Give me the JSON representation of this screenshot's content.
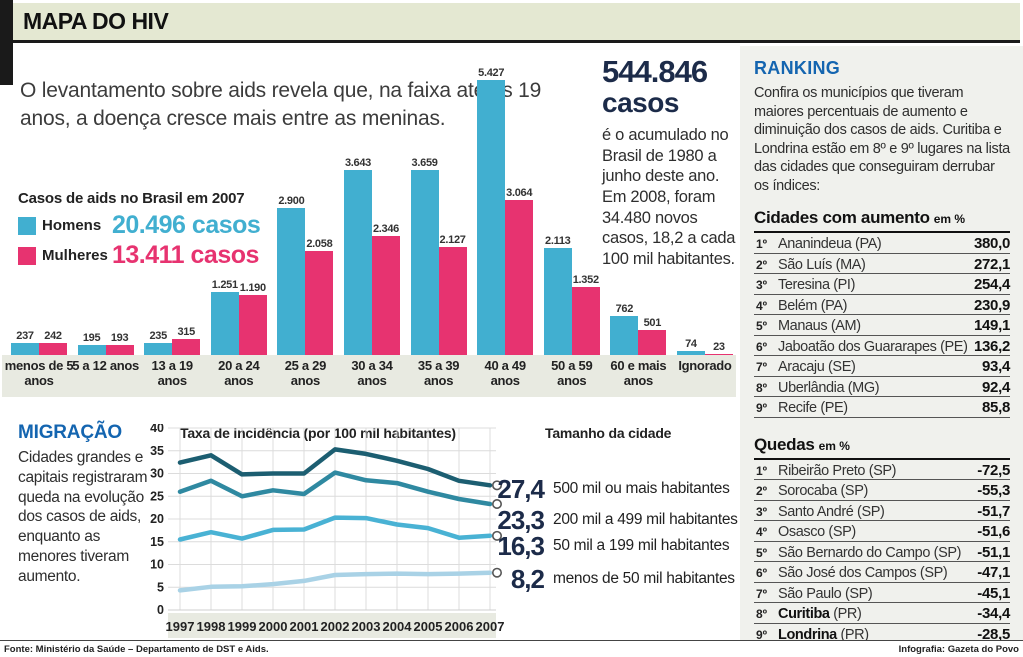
{
  "header": {
    "title": "MAPA DO HIV"
  },
  "intro": "O levantamento sobre aids revela que, na faixa até os 19 anos, a doença cresce mais entre as meninas.",
  "big_stat": {
    "number": "544.846",
    "unit": "casos",
    "description": "é o acumulado no Brasil de 1980 a junho deste ano. Em 2008, foram 34.480 novos casos, 18,2 a cada 100 mil habitantes."
  },
  "bar_chart": {
    "title": "Casos de aids no Brasil em 2007",
    "legend": [
      {
        "label": "Homens",
        "total": "20.496 casos",
        "color": "#41afd0"
      },
      {
        "label": "Mulheres",
        "total": "13.411 casos",
        "color": "#e73370"
      }
    ]
  },
  "migration": {
    "title": "MIGRAÇÃO",
    "text": "Cidades grandes e capitais registraram queda na evolução dos casos de aids, enquanto as menores tiveram aumento."
  },
  "ranking": {
    "title": "RANKING",
    "intro": "Confira os municípios que tiveram maiores percentuais de aumento e diminuição dos casos de aids. Curitiba e Londrina estão em 8º e 9º lugares na lista das cidades que conseguiram derrubar os índices:",
    "increase": {
      "title": "Cidades com aumento",
      "unit": "em %",
      "rows": [
        {
          "rank": "1º",
          "city": "Ananindeua",
          "uf": "(PA)",
          "value": "380,0",
          "highlight": false
        },
        {
          "rank": "2º",
          "city": "São Luís",
          "uf": "(MA)",
          "value": "272,1",
          "highlight": false
        },
        {
          "rank": "3º",
          "city": "Teresina",
          "uf": "(PI)",
          "value": "254,4",
          "highlight": false
        },
        {
          "rank": "4º",
          "city": "Belém",
          "uf": "(PA)",
          "value": "230,9",
          "highlight": false
        },
        {
          "rank": "5º",
          "city": "Manaus",
          "uf": "(AM)",
          "value": "149,1",
          "highlight": false
        },
        {
          "rank": "6º",
          "city": "Jaboatão dos Guararapes",
          "uf": "(PE)",
          "value": "136,2",
          "highlight": false
        },
        {
          "rank": "7º",
          "city": "Aracaju",
          "uf": "(SE)",
          "value": "93,4",
          "highlight": false
        },
        {
          "rank": "8º",
          "city": "Uberlândia",
          "uf": "(MG)",
          "value": "92,4",
          "highlight": false
        },
        {
          "rank": "9º",
          "city": "Recife",
          "uf": "(PE)",
          "value": "85,8",
          "highlight": false
        }
      ]
    },
    "decrease": {
      "title": "Quedas",
      "unit": "em %",
      "rows": [
        {
          "rank": "1º",
          "city": "Ribeirão Preto",
          "uf": "(SP)",
          "value": "-72,5",
          "highlight": false
        },
        {
          "rank": "2º",
          "city": "Sorocaba",
          "uf": "(SP)",
          "value": "-55,3",
          "highlight": false
        },
        {
          "rank": "3º",
          "city": "Santo André",
          "uf": "(SP)",
          "value": "-51,7",
          "highlight": false
        },
        {
          "rank": "4º",
          "city": "Osasco",
          "uf": "(SP)",
          "value": "-51,6",
          "highlight": false
        },
        {
          "rank": "5º",
          "city": "São Bernardo do Campo",
          "uf": "(SP)",
          "value": "-51,1",
          "highlight": false
        },
        {
          "rank": "6º",
          "city": "São José dos Campos",
          "uf": "(SP)",
          "value": "-47,1",
          "highlight": false
        },
        {
          "rank": "7º",
          "city": "São Paulo",
          "uf": "(SP)",
          "value": "-45,1",
          "highlight": false
        },
        {
          "rank": "8º",
          "city": "Curitiba",
          "uf": "(PR)",
          "value": "-34,4",
          "highlight": true
        },
        {
          "rank": "9º",
          "city": "Londrina",
          "uf": "(PR)",
          "value": "-28,5",
          "highlight": true
        }
      ]
    }
  },
  "chart_data": [
    {
      "type": "bar",
      "title": "Casos de aids no Brasil em 2007",
      "categories": [
        "menos de 5 anos",
        "5 a 12 anos",
        "13 a 19 anos",
        "20 a 24 anos",
        "25 a 29 anos",
        "30 a 34 anos",
        "35 a 39 anos",
        "40 a 49 anos",
        "50 a 59 anos",
        "60 e mais anos",
        "Ignorado"
      ],
      "series": [
        {
          "name": "Homens",
          "total": 20496,
          "color": "#41afd0",
          "values": [
            237,
            195,
            235,
            1251,
            2900,
            3643,
            3659,
            5427,
            2113,
            762,
            74
          ]
        },
        {
          "name": "Mulheres",
          "total": 13411,
          "color": "#e73370",
          "values": [
            242,
            193,
            315,
            1190,
            2058,
            2346,
            2127,
            3064,
            1352,
            501,
            23
          ]
        }
      ],
      "ylim": [
        0,
        5427
      ],
      "legend_position": "top-left",
      "grid": false
    },
    {
      "type": "line",
      "title": "Taxa de incidência (por 100 mil habitantes)",
      "legend_title": "Tamanho da cidade",
      "x": [
        1997,
        1998,
        1999,
        2000,
        2001,
        2002,
        2003,
        2004,
        2005,
        2006,
        2007
      ],
      "ylim": [
        0,
        40
      ],
      "yticks": [
        0,
        5,
        10,
        15,
        20,
        25,
        30,
        35,
        40
      ],
      "grid": true,
      "series": [
        {
          "name": "500 mil ou mais habitantes",
          "end_label": "27,4",
          "color": "#1c5e71",
          "values": [
            32.4,
            34.0,
            29.8,
            30.0,
            30.0,
            35.3,
            34.3,
            32.8,
            31.0,
            28.4,
            27.4
          ]
        },
        {
          "name": "200 mil a 499 mil habitantes",
          "end_label": "23,3",
          "color": "#2f89a1",
          "values": [
            26.0,
            28.4,
            25.0,
            26.3,
            25.5,
            30.2,
            28.5,
            27.9,
            26.0,
            24.4,
            23.3
          ]
        },
        {
          "name": "50 mil a 199 mil habitantes",
          "end_label": "16,3",
          "color": "#49b2d4",
          "values": [
            15.5,
            17.1,
            15.7,
            17.6,
            17.7,
            20.3,
            20.2,
            18.8,
            18.0,
            15.9,
            16.3
          ]
        },
        {
          "name": "menos de 50 mil habitantes",
          "end_label": "8,2",
          "color": "#a9d2e6",
          "values": [
            4.3,
            5.1,
            5.2,
            5.7,
            6.4,
            7.7,
            7.9,
            8.0,
            7.9,
            8.0,
            8.2
          ]
        }
      ]
    }
  ],
  "footer": {
    "source": "Fonte: Ministério da Saúde – Departamento de DST e Aids.",
    "credit": "Infografia: Gazeta do Povo"
  }
}
